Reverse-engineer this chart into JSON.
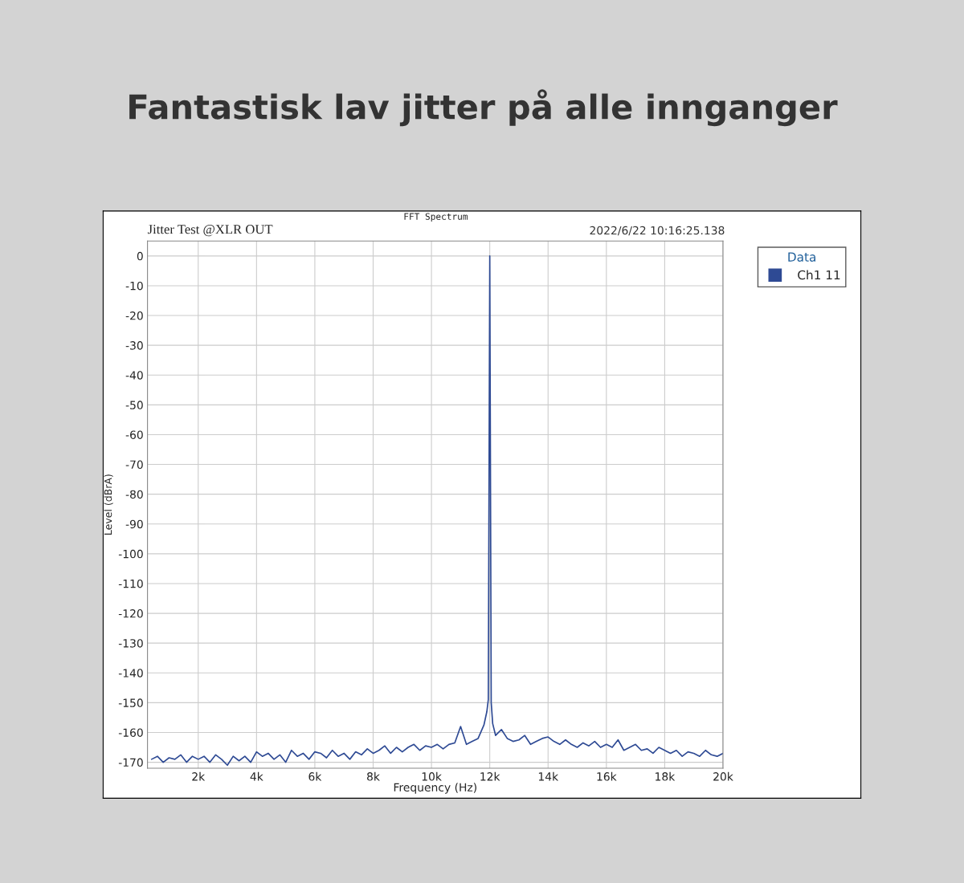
{
  "chart_data": {
    "type": "line",
    "title": "Fantastisk lav jitter på alle innganger",
    "subtitle": "FFT Spectrum",
    "annotations": [
      "Jitter Test @XLR OUT",
      "2022/6/22 10:16:25.138"
    ],
    "xlabel": "Frequency (Hz)",
    "ylabel": "Level (dBrA)",
    "legend_title": "Data",
    "legend": "right",
    "grid": true,
    "xlim": [
      260,
      20000
    ],
    "ylim": [
      -172,
      5
    ],
    "xticks": [
      {
        "value": 2000,
        "label": "2k"
      },
      {
        "value": 4000,
        "label": "4k"
      },
      {
        "value": 6000,
        "label": "6k"
      },
      {
        "value": 8000,
        "label": "8k"
      },
      {
        "value": 10000,
        "label": "10k"
      },
      {
        "value": 12000,
        "label": "12k"
      },
      {
        "value": 14000,
        "label": "14k"
      },
      {
        "value": 16000,
        "label": "16k"
      },
      {
        "value": 18000,
        "label": "18k"
      },
      {
        "value": 20000,
        "label": "20k"
      }
    ],
    "yticks": [
      0,
      -10,
      -20,
      -30,
      -40,
      -50,
      -60,
      -70,
      -80,
      -90,
      -100,
      -110,
      -120,
      -130,
      -140,
      -150,
      -160,
      -170
    ],
    "series": [
      {
        "name": "Ch1 11",
        "color": "#2e4a94",
        "x": [
          400,
          600,
          800,
          1000,
          1200,
          1400,
          1600,
          1800,
          2000,
          2200,
          2400,
          2600,
          2800,
          3000,
          3200,
          3400,
          3600,
          3800,
          4000,
          4200,
          4400,
          4600,
          4800,
          5000,
          5200,
          5400,
          5600,
          5800,
          6000,
          6200,
          6400,
          6600,
          6800,
          7000,
          7200,
          7400,
          7600,
          7800,
          8000,
          8200,
          8400,
          8600,
          8800,
          9000,
          9200,
          9400,
          9600,
          9800,
          10000,
          10200,
          10400,
          10600,
          10800,
          11000,
          11200,
          11400,
          11600,
          11800,
          11900,
          11950,
          12000,
          12050,
          12100,
          12200,
          12400,
          12600,
          12800,
          13000,
          13200,
          13400,
          13600,
          13800,
          14000,
          14200,
          14400,
          14600,
          14800,
          15000,
          15200,
          15400,
          15600,
          15800,
          16000,
          16200,
          16400,
          16600,
          16800,
          17000,
          17200,
          17400,
          17600,
          17800,
          18000,
          18200,
          18400,
          18600,
          18800,
          19000,
          19200,
          19400,
          19600,
          19800,
          20000
        ],
        "values": [
          -169,
          -168,
          -170,
          -168.5,
          -169,
          -167.5,
          -170,
          -168,
          -169,
          -168,
          -170,
          -167.5,
          -169,
          -171,
          -168,
          -169.5,
          -168,
          -170,
          -166.5,
          -168,
          -167,
          -169,
          -167.5,
          -170,
          -166,
          -168,
          -167,
          -169,
          -166.5,
          -167,
          -168.5,
          -166,
          -168,
          -167,
          -169,
          -166.5,
          -167.5,
          -165.5,
          -167,
          -166,
          -164.5,
          -167,
          -165,
          -166.5,
          -165,
          -164,
          -166,
          -164.5,
          -165,
          -164,
          -165.5,
          -164,
          -163.5,
          -158,
          -164,
          -163,
          -162,
          -157.5,
          -153,
          -149,
          0,
          -150,
          -157,
          -161,
          -159,
          -162,
          -163,
          -162.5,
          -161,
          -164,
          -163,
          -162,
          -161.5,
          -163,
          -164,
          -162.5,
          -164,
          -165,
          -163.5,
          -164.5,
          -163,
          -165,
          -164,
          -165,
          -162.5,
          -166,
          -165,
          -164,
          -166,
          -165.5,
          -167,
          -165,
          -166,
          -167,
          -166,
          -168,
          -166.5,
          -167,
          -168,
          -166,
          -167.5,
          -168,
          -167
        ]
      }
    ]
  }
}
